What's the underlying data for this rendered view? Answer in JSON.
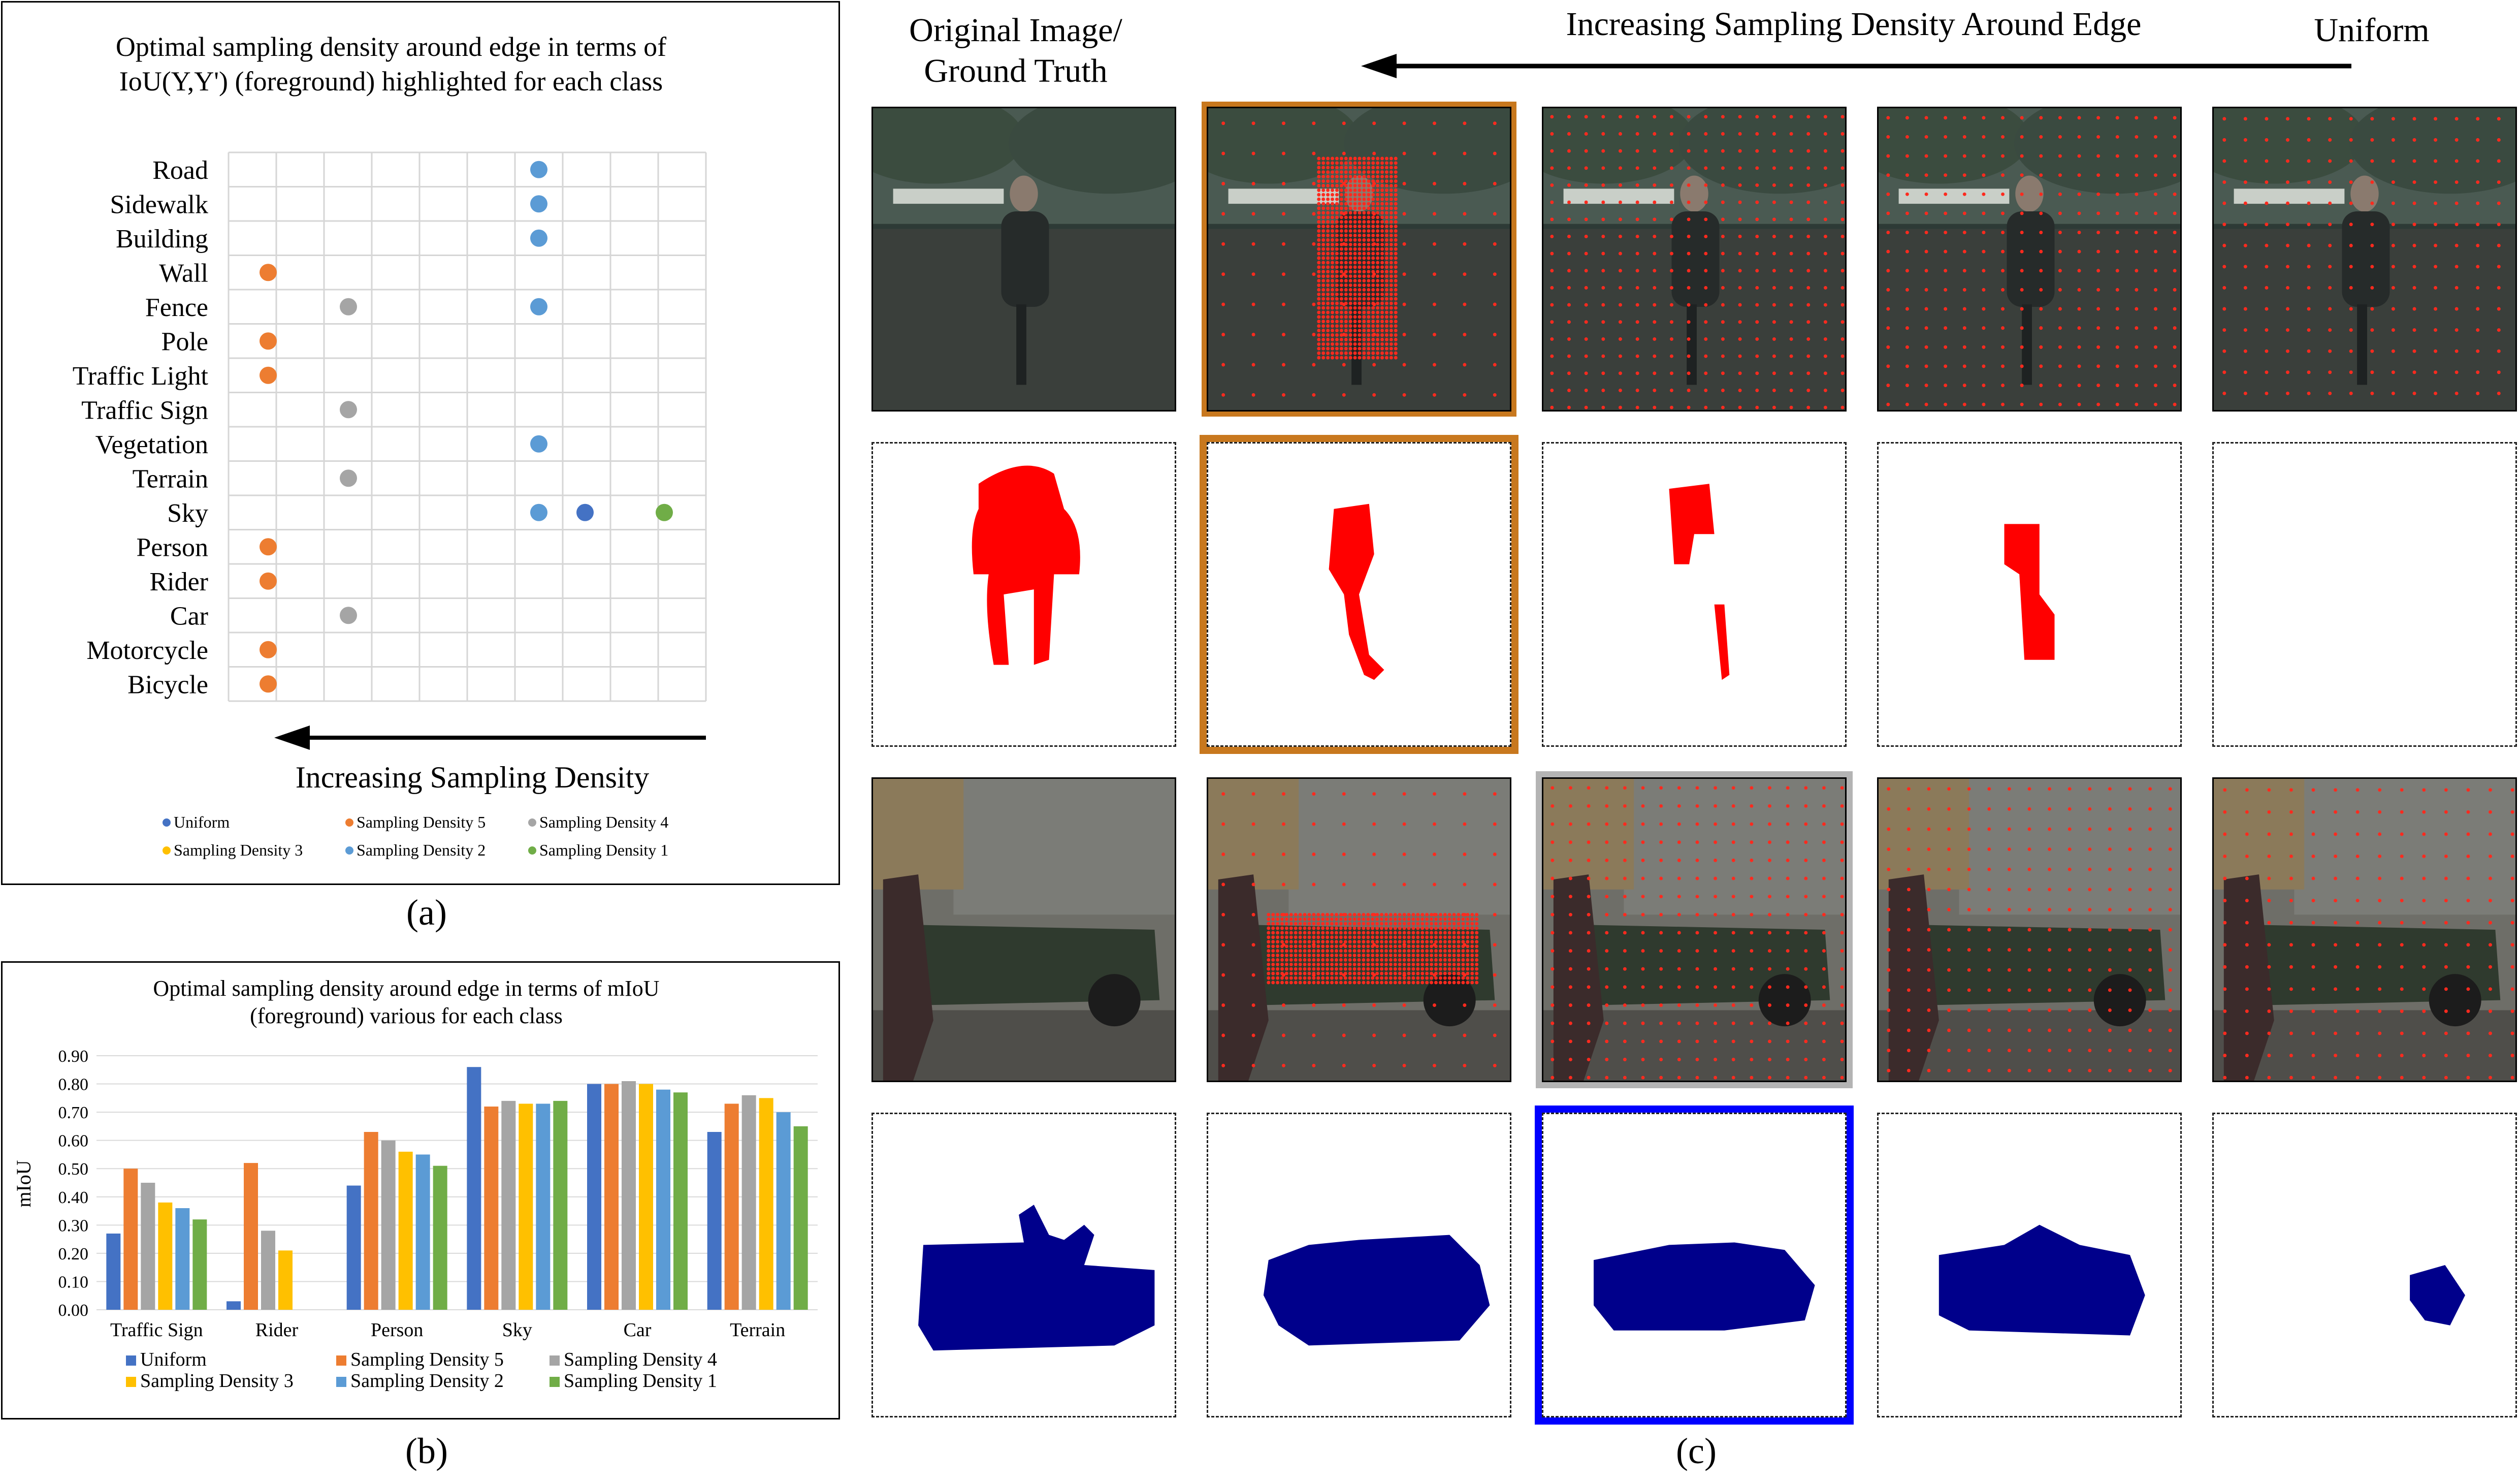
{
  "panel_a": {
    "title": "Optimal sampling density around edge in terms of IoU(Y,Y') (foreground) highlighted for each class",
    "arrow_label": "Increasing Sampling Density",
    "caption": "(a)",
    "legend": [
      {
        "name": "Uniform",
        "color": "#4472c4"
      },
      {
        "name": "Sampling Density 5",
        "color": "#ed7d31"
      },
      {
        "name": "Sampling Density 4",
        "color": "#a5a5a5"
      },
      {
        "name": "Sampling Density 3",
        "color": "#ffc000"
      },
      {
        "name": "Sampling Density 2",
        "color": "#5b9bd5"
      },
      {
        "name": "Sampling Density 1",
        "color": "#70ad47"
      }
    ]
  },
  "panel_b": {
    "caption": "(b)"
  },
  "panel_c": {
    "header_left": "Original Image/ Ground Truth",
    "header_mid": "Increasing Sampling Density Around Edge",
    "header_right": "Uniform",
    "caption": "(c)",
    "highlight_colors": {
      "orange": "#c8781e",
      "gray": "#b4b4b4",
      "blue": "#0000ff"
    }
  },
  "chart_data": [
    {
      "type": "scatter",
      "title": "Optimal sampling density around edge in terms of IoU(Y,Y') (foreground) highlighted for each class",
      "xlabel": "Increasing Sampling Density",
      "categories": [
        "Road",
        "Sidewalk",
        "Building",
        "Wall",
        "Fence",
        "Pole",
        "Traffic Light",
        "Traffic Sign",
        "Vegetation",
        "Terrain",
        "Sky",
        "Person",
        "Rider",
        "Car",
        "Motorcycle",
        "Bicycle"
      ],
      "x_columns": [
        "Sampling Density 5",
        "Sampling Density 4",
        "Sampling Density 3",
        "Uniform",
        "Sampling Density 1",
        "Sampling Density 2"
      ],
      "points": [
        {
          "category": "Road",
          "series": "Sampling Density 2"
        },
        {
          "category": "Sidewalk",
          "series": "Sampling Density 2"
        },
        {
          "category": "Building",
          "series": "Sampling Density 2"
        },
        {
          "category": "Wall",
          "series": "Sampling Density 5"
        },
        {
          "category": "Fence",
          "series": "Sampling Density 4"
        },
        {
          "category": "Fence",
          "series": "Sampling Density 2"
        },
        {
          "category": "Pole",
          "series": "Sampling Density 5"
        },
        {
          "category": "Traffic Light",
          "series": "Sampling Density 5"
        },
        {
          "category": "Traffic Sign",
          "series": "Sampling Density 4"
        },
        {
          "category": "Vegetation",
          "series": "Sampling Density 2"
        },
        {
          "category": "Terrain",
          "series": "Sampling Density 4"
        },
        {
          "category": "Sky",
          "series": "Uniform"
        },
        {
          "category": "Sky",
          "series": "Sampling Density 1"
        },
        {
          "category": "Sky",
          "series": "Sampling Density 2"
        },
        {
          "category": "Person",
          "series": "Sampling Density 5"
        },
        {
          "category": "Rider",
          "series": "Sampling Density 5"
        },
        {
          "category": "Car",
          "series": "Sampling Density 4"
        },
        {
          "category": "Motorcycle",
          "series": "Sampling Density 5"
        },
        {
          "category": "Bicycle",
          "series": "Sampling Density 5"
        }
      ],
      "grid": true,
      "legend_position": "bottom"
    },
    {
      "type": "bar",
      "title": "Optimal sampling density around edge in terms of mIoU (foreground) various for each class",
      "xlabel": "",
      "ylabel": "mIoU",
      "ylim": [
        0,
        0.9
      ],
      "yticks": [
        "0.00",
        "0.10",
        "0.20",
        "0.30",
        "0.40",
        "0.50",
        "0.60",
        "0.70",
        "0.80",
        "0.90"
      ],
      "categories": [
        "Traffic Sign",
        "Rider",
        "Person",
        "Sky",
        "Car",
        "Terrain"
      ],
      "series": [
        {
          "name": "Uniform",
          "color": "#4472c4",
          "values": [
            0.27,
            0.03,
            0.44,
            0.86,
            0.8,
            0.63
          ]
        },
        {
          "name": "Sampling Density 5",
          "color": "#ed7d31",
          "values": [
            0.5,
            0.52,
            0.63,
            0.72,
            0.8,
            0.73
          ]
        },
        {
          "name": "Sampling Density 4",
          "color": "#a5a5a5",
          "values": [
            0.45,
            0.28,
            0.6,
            0.74,
            0.81,
            0.76
          ]
        },
        {
          "name": "Sampling Density 3",
          "color": "#ffc000",
          "values": [
            0.38,
            0.21,
            0.56,
            0.73,
            0.8,
            0.75
          ]
        },
        {
          "name": "Sampling Density 2",
          "color": "#5b9bd5",
          "values": [
            0.36,
            0,
            0.55,
            0.73,
            0.78,
            0.7
          ]
        },
        {
          "name": "Sampling Density 1",
          "color": "#70ad47",
          "values": [
            0.32,
            0,
            0.51,
            0.74,
            0.77,
            0.65
          ]
        }
      ],
      "grid": true,
      "legend_position": "bottom"
    }
  ]
}
